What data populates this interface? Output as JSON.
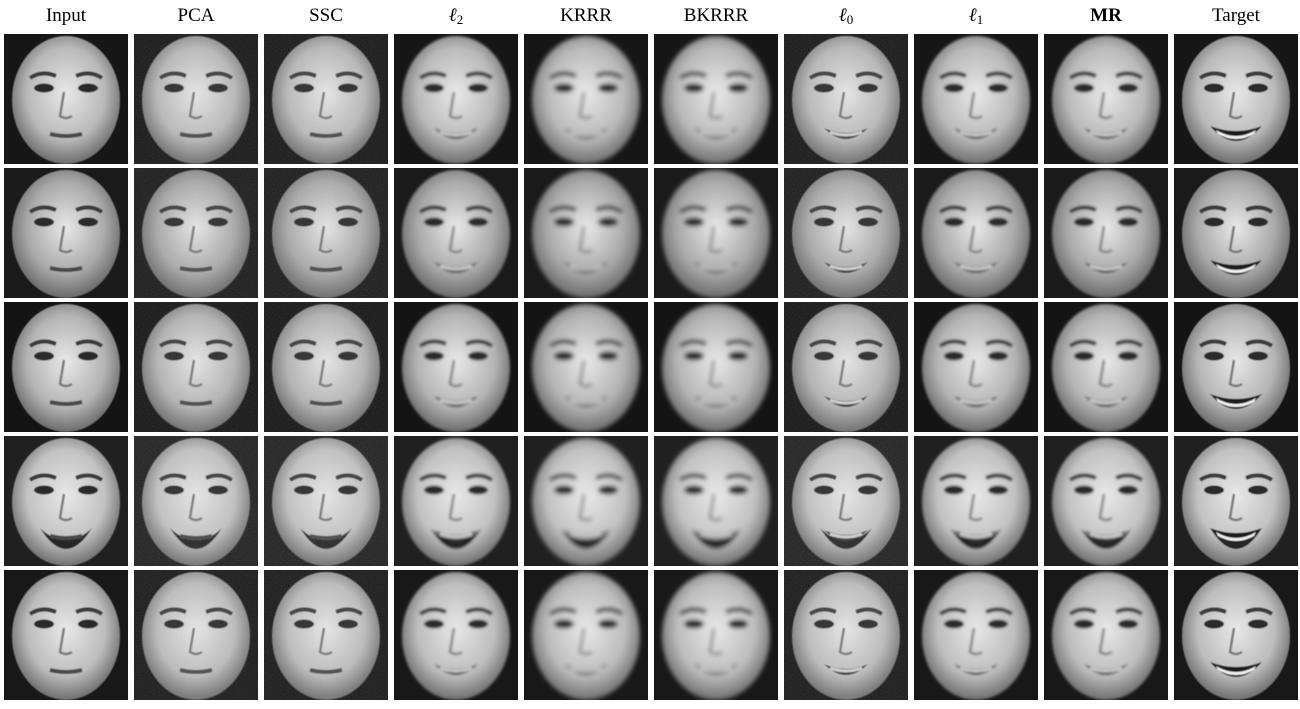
{
  "figure": {
    "columns": [
      {
        "label": "Input",
        "style": "normal"
      },
      {
        "label": "PCA",
        "style": "normal"
      },
      {
        "label": "SSC",
        "style": "normal"
      },
      {
        "label": "ℓ",
        "subscript": "2",
        "style": "math"
      },
      {
        "label": "KRRR",
        "style": "normal"
      },
      {
        "label": "BKRRR",
        "style": "normal"
      },
      {
        "label": "ℓ",
        "subscript": "0",
        "style": "math"
      },
      {
        "label": "ℓ",
        "subscript": "1",
        "style": "math"
      },
      {
        "label": "MR",
        "style": "bold"
      },
      {
        "label": "Target",
        "style": "normal"
      }
    ],
    "rows": [
      {
        "subject": "woman-1",
        "skin": "#b9b9b9",
        "bg": "#161616",
        "beard": false
      },
      {
        "subject": "man-1",
        "skin": "#a9a9a9",
        "bg": "#1a1a1a",
        "beard": false
      },
      {
        "subject": "woman-2",
        "skin": "#b4b4b4",
        "bg": "#141414",
        "beard": false
      },
      {
        "subject": "man-bearded",
        "skin": "#c2c2c2",
        "bg": "#202020",
        "beard": true
      },
      {
        "subject": "woman-3",
        "skin": "#bdbdbd",
        "bg": "#181818",
        "beard": false
      }
    ],
    "column_expressions": [
      "neutral",
      "neutral",
      "neutral",
      "smile",
      "smile",
      "smile",
      "smile",
      "smile",
      "smile",
      "smile-teeth"
    ],
    "column_blur": [
      "sharp",
      "noisy",
      "noisy",
      "soft",
      "blurred",
      "blurred",
      "noisy",
      "soft",
      "soft",
      "sharp"
    ]
  }
}
